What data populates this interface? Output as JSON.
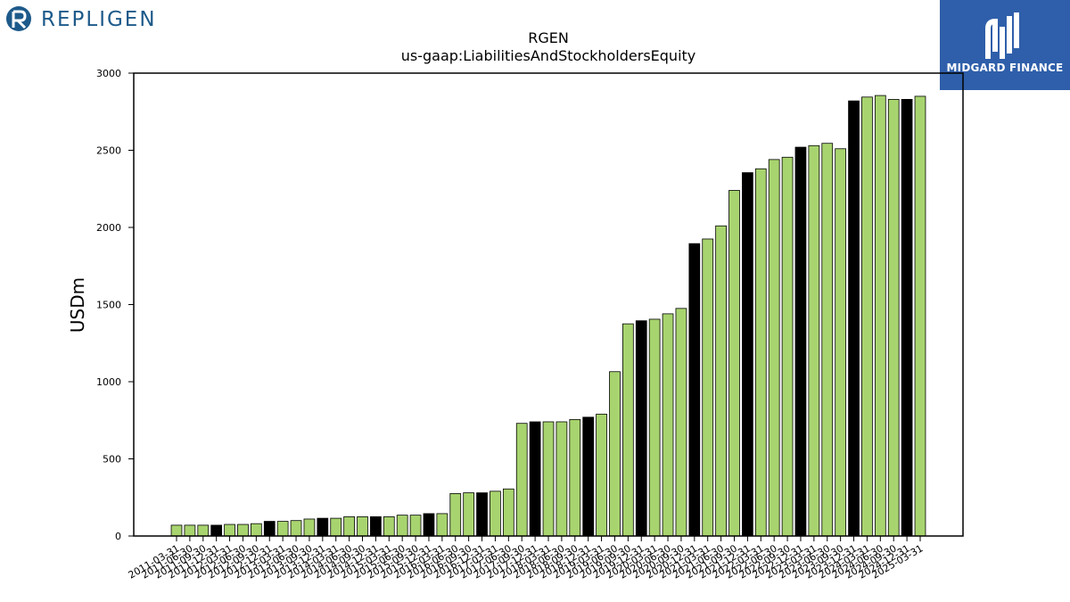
{
  "logos": {
    "left_text": "REPLIGEN",
    "right_text": "MIDGARD FINANCE"
  },
  "colors": {
    "bar_green": "#a8d46f",
    "bar_black": "#000000",
    "logo_left_blue": "#1d5a8a",
    "logo_right_bg": "#2f5faa"
  },
  "chart_data": {
    "type": "bar",
    "title": "RGEN",
    "subtitle": "us-gaap:LiabilitiesAndStockholdersEquity",
    "xlabel": "",
    "ylabel": "USDm",
    "ylim": [
      0,
      3000
    ],
    "yticks": [
      0,
      500,
      1000,
      1500,
      2000,
      2500,
      3000
    ],
    "grid": false,
    "categories": [
      "2011-03-31",
      "2011-06-30",
      "2011-09-30",
      "2011-12-31",
      "2012-03-31",
      "2012-06-30",
      "2012-09-30",
      "2012-12-31",
      "2013-03-31",
      "2013-06-30",
      "2013-09-30",
      "2013-12-31",
      "2014-03-31",
      "2014-06-30",
      "2014-09-30",
      "2014-12-31",
      "2015-03-31",
      "2015-06-30",
      "2015-09-30",
      "2015-12-31",
      "2016-03-31",
      "2016-06-30",
      "2016-09-30",
      "2016-12-31",
      "2017-03-31",
      "2017-06-30",
      "2017-09-30",
      "2017-12-31",
      "2018-03-31",
      "2018-06-30",
      "2018-09-30",
      "2018-12-31",
      "2019-03-31",
      "2019-06-30",
      "2019-09-30",
      "2019-12-31",
      "2020-03-31",
      "2020-06-30",
      "2020-09-30",
      "2020-12-31",
      "2021-03-31",
      "2021-06-30",
      "2021-09-30",
      "2021-12-31",
      "2022-03-31",
      "2022-06-30",
      "2022-09-30",
      "2022-12-31",
      "2023-03-31",
      "2023-06-30",
      "2023-09-30",
      "2023-12-31",
      "2024-03-31",
      "2024-06-30",
      "2024-09-30",
      "2024-12-31",
      "2025-03-31"
    ],
    "values": [
      70,
      70,
      70,
      70,
      75,
      75,
      80,
      95,
      95,
      100,
      110,
      115,
      115,
      125,
      125,
      125,
      125,
      135,
      135,
      145,
      145,
      275,
      280,
      280,
      290,
      305,
      730,
      740,
      740,
      740,
      755,
      770,
      790,
      1065,
      1375,
      1395,
      1405,
      1440,
      1475,
      1895,
      1925,
      2010,
      2240,
      2355,
      2380,
      2440,
      2455,
      2520,
      2530,
      2545,
      2510,
      2820,
      2845,
      2855,
      2830,
      2830,
      2850
    ],
    "highlight_black_indices": [
      3,
      7,
      11,
      15,
      19,
      23,
      27,
      31,
      35,
      39,
      43,
      47,
      51,
      55
    ]
  }
}
